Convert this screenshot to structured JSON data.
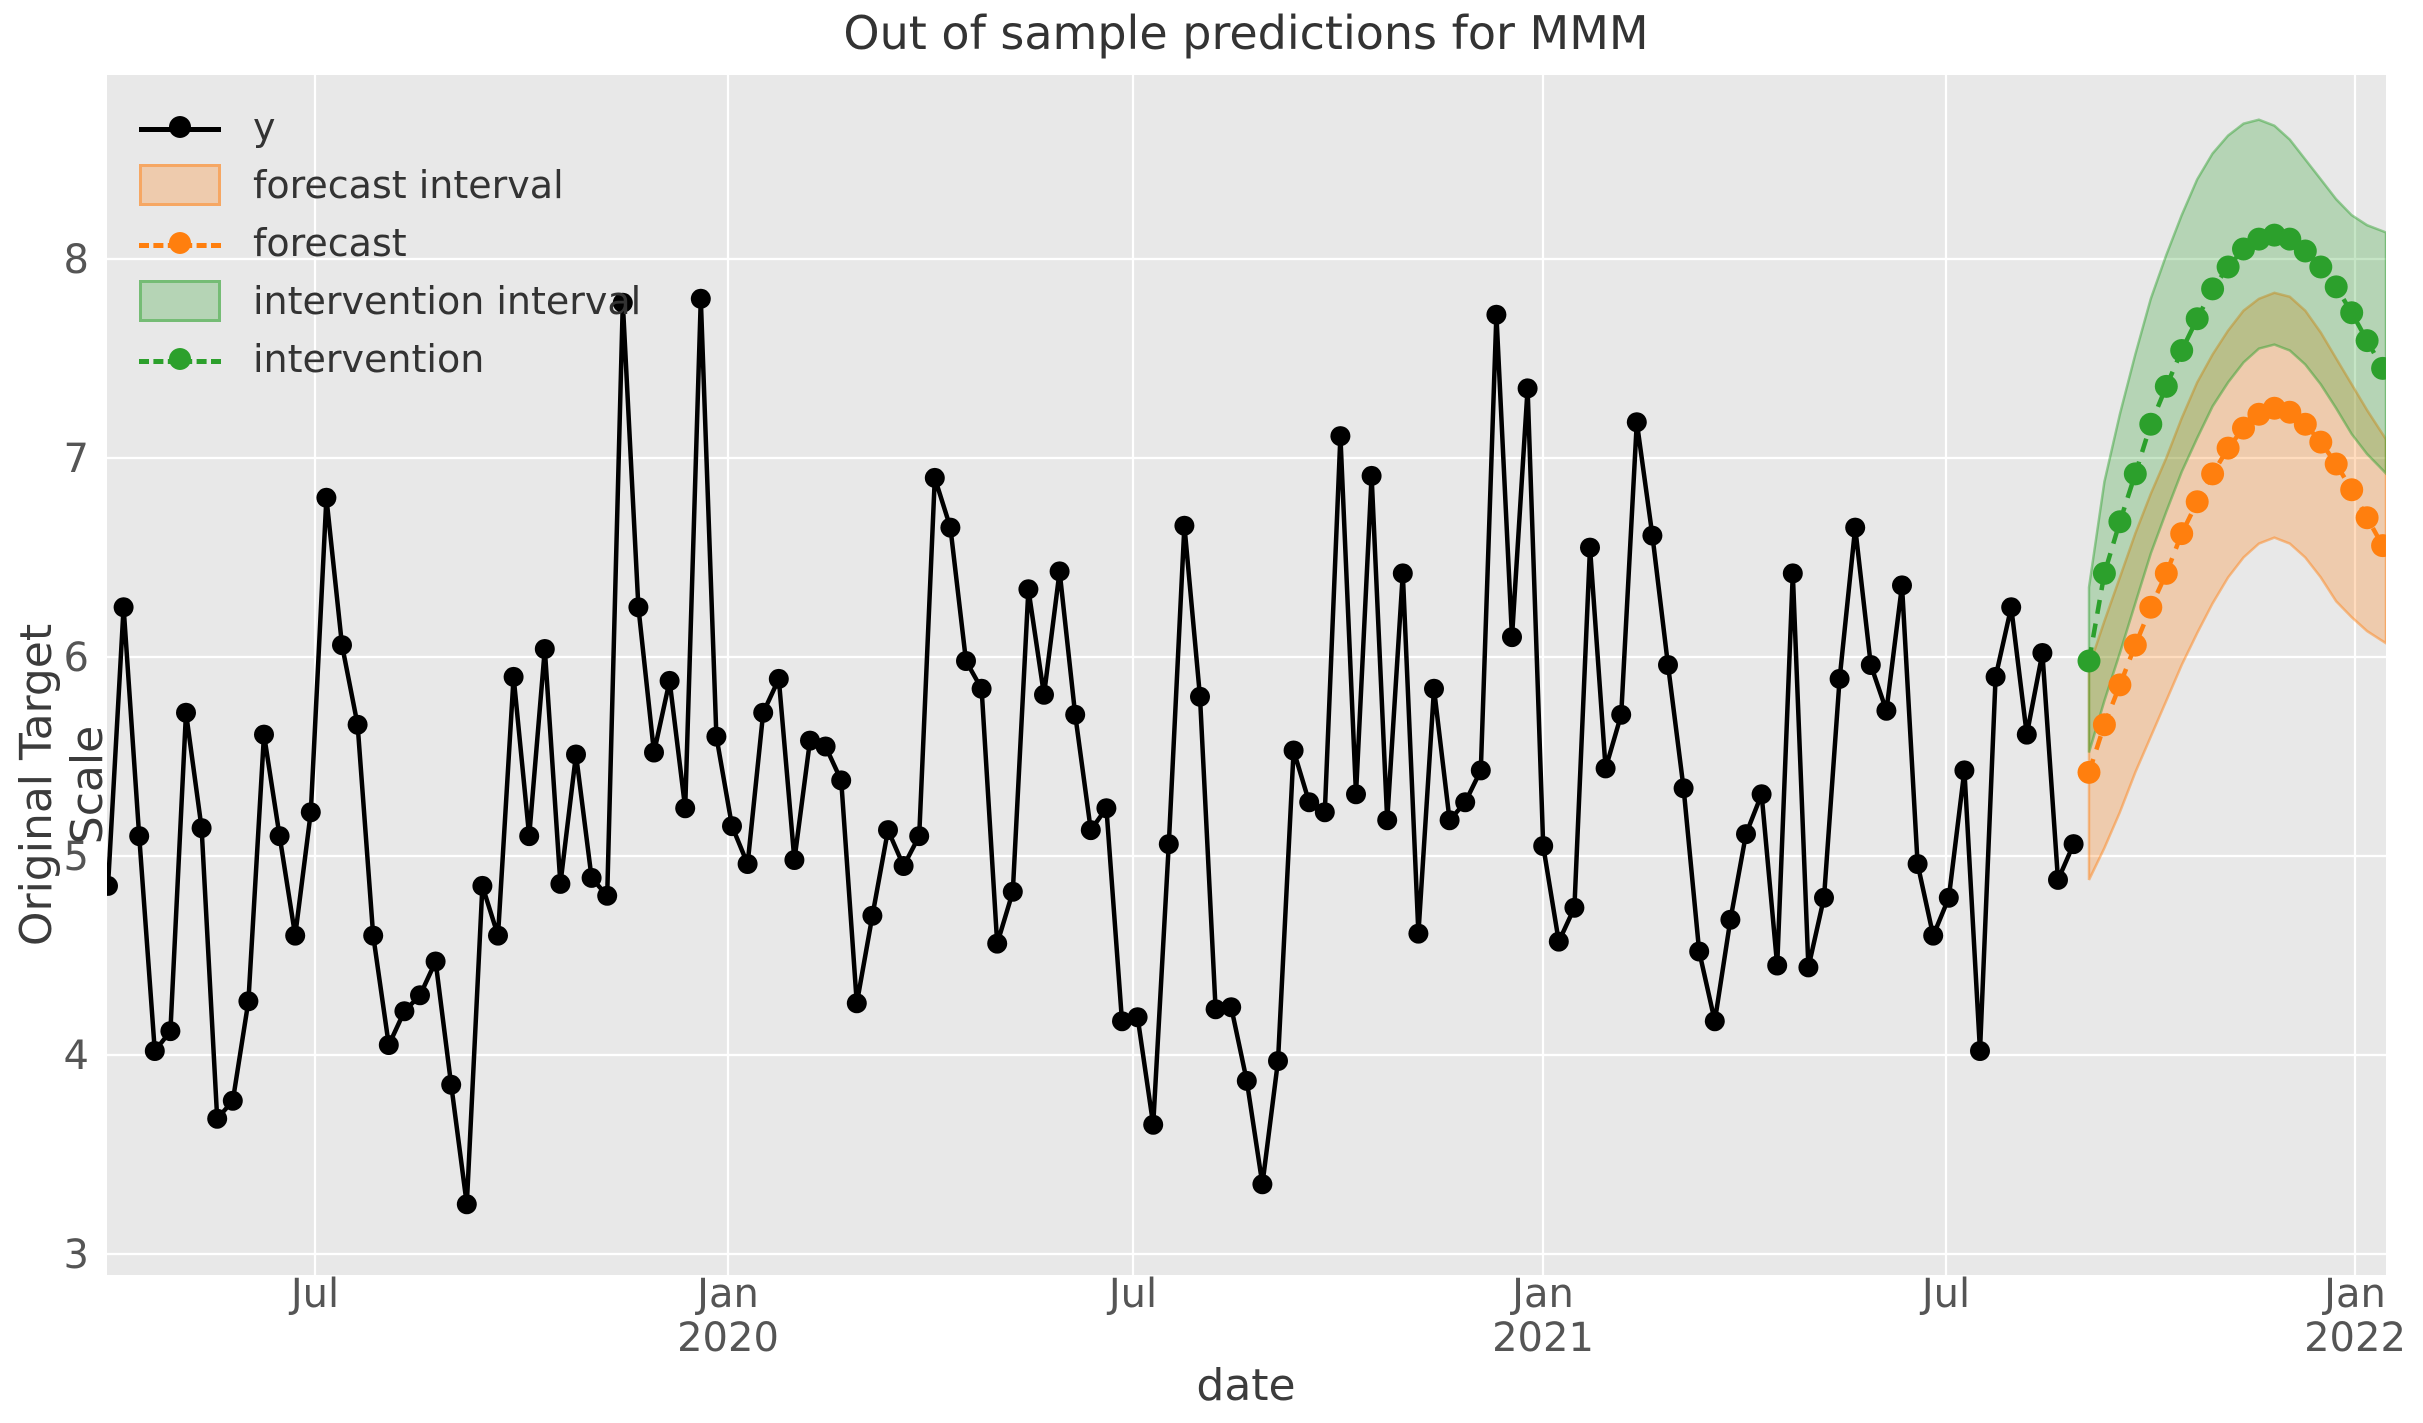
{
  "chart_data": {
    "type": "line",
    "title": "Out of sample predictions for MMM",
    "xlabel": "date",
    "ylabel": "Original Target Scale",
    "grid": true,
    "legend_position": "upper left",
    "background_color": "#e8e8e8",
    "grid_color": "#ffffff",
    "y_axis": {
      "label": "Original Target Scale",
      "ticks": [
        "3",
        "4",
        "5",
        "6",
        "7",
        "8"
      ],
      "ylim": [
        2.95,
        8.95
      ]
    },
    "x_axis": {
      "label": "date",
      "ticks": [
        {
          "month": "Jul",
          "year": ""
        },
        {
          "month": "Jan",
          "year": "2020"
        },
        {
          "month": "Jul",
          "year": ""
        },
        {
          "month": "Jan",
          "year": "2021"
        },
        {
          "month": "Jul",
          "year": ""
        },
        {
          "month": "Jan",
          "year": "2022"
        }
      ]
    },
    "legend": [
      {
        "label": "y",
        "type": "line",
        "color": "#000000"
      },
      {
        "label": "forecast interval",
        "type": "band",
        "color": "#ff7f0e"
      },
      {
        "label": "forecast",
        "type": "dashed",
        "color": "#ff7f0e"
      },
      {
        "label": "intervention interval",
        "type": "band",
        "color": "#2ca02c"
      },
      {
        "label": "intervention",
        "type": "dashed",
        "color": "#2ca02c"
      }
    ],
    "series": [
      {
        "name": "y",
        "color": "#000000",
        "style": "solid-markers",
        "frequency": "weekly",
        "values": [
          4.85,
          6.25,
          5.1,
          4.02,
          4.12,
          5.72,
          5.14,
          3.68,
          3.77,
          4.27,
          5.61,
          5.1,
          4.6,
          5.22,
          6.8,
          6.06,
          5.66,
          4.6,
          4.05,
          4.22,
          4.3,
          4.47,
          3.85,
          3.25,
          4.85,
          4.6,
          5.9,
          5.1,
          6.04,
          4.86,
          5.51,
          4.89,
          4.8,
          7.78,
          6.25,
          5.52,
          5.88,
          5.24,
          7.8,
          5.6,
          5.15,
          4.96,
          5.72,
          5.89,
          4.98,
          5.58,
          5.55,
          5.38,
          4.26,
          4.7,
          5.13,
          4.95,
          5.1,
          6.9,
          6.65,
          5.98,
          5.84,
          4.56,
          4.82,
          6.34,
          5.81,
          6.43,
          5.71,
          5.13,
          5.24,
          4.17,
          4.19,
          3.65,
          5.06,
          6.66,
          5.8,
          4.23,
          4.24,
          3.87,
          3.35,
          3.97,
          5.53,
          5.27,
          5.22,
          7.11,
          5.31,
          6.91,
          5.18,
          6.42,
          4.61,
          5.84,
          5.18,
          5.27,
          5.43,
          7.72,
          6.1,
          7.35,
          5.05,
          4.57,
          4.74,
          6.55,
          5.44,
          5.71,
          7.18,
          6.61,
          5.96,
          5.34,
          4.52,
          4.17,
          4.68,
          5.11,
          5.31,
          4.45,
          6.42,
          4.44,
          4.79,
          5.89,
          6.65,
          5.96,
          5.73,
          6.36,
          4.96,
          4.6,
          4.79,
          5.43,
          4.02,
          5.9,
          6.25,
          5.61,
          6.02,
          4.88,
          5.06
        ]
      },
      {
        "name": "forecast",
        "color": "#ff7f0e",
        "style": "dashed-markers",
        "frequency": "weekly",
        "values": [
          5.42,
          5.66,
          5.86,
          6.06,
          6.25,
          6.42,
          6.62,
          6.78,
          6.92,
          7.05,
          7.15,
          7.22,
          7.25,
          7.23,
          7.17,
          7.08,
          6.97,
          6.84,
          6.7,
          6.56
        ],
        "interval_name": "forecast interval",
        "upper": [
          5.95,
          6.18,
          6.4,
          6.62,
          6.82,
          7.0,
          7.2,
          7.38,
          7.52,
          7.64,
          7.74,
          7.8,
          7.83,
          7.81,
          7.74,
          7.63,
          7.5,
          7.37,
          7.24,
          7.12
        ],
        "lower": [
          4.88,
          5.04,
          5.22,
          5.42,
          5.6,
          5.78,
          5.96,
          6.12,
          6.27,
          6.4,
          6.5,
          6.57,
          6.6,
          6.57,
          6.5,
          6.4,
          6.28,
          6.2,
          6.13,
          6.08
        ]
      },
      {
        "name": "intervention",
        "color": "#2ca02c",
        "style": "dashed-markers",
        "frequency": "weekly",
        "values": [
          5.98,
          6.42,
          6.68,
          6.92,
          7.17,
          7.36,
          7.54,
          7.7,
          7.85,
          7.96,
          8.05,
          8.1,
          8.12,
          8.1,
          8.04,
          7.96,
          7.86,
          7.73,
          7.59,
          7.45
        ],
        "interval_name": "intervention interval",
        "upper": [
          6.35,
          6.88,
          7.22,
          7.52,
          7.8,
          8.02,
          8.22,
          8.4,
          8.53,
          8.62,
          8.68,
          8.7,
          8.67,
          8.6,
          8.5,
          8.4,
          8.3,
          8.22,
          8.17,
          8.14
        ],
        "lower": [
          5.52,
          5.78,
          6.02,
          6.27,
          6.52,
          6.73,
          6.93,
          7.1,
          7.26,
          7.38,
          7.48,
          7.55,
          7.57,
          7.54,
          7.47,
          7.37,
          7.25,
          7.12,
          7.02,
          6.94
        ]
      }
    ]
  }
}
